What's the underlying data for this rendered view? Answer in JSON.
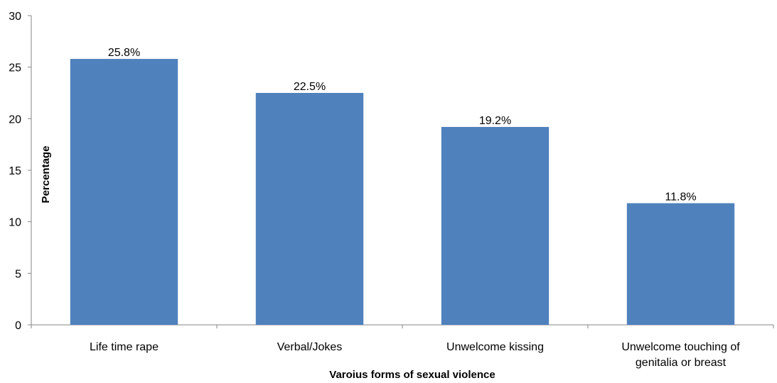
{
  "chart_data": {
    "type": "bar",
    "title": "",
    "xlabel": "Varoius forms of sexual violence",
    "ylabel": "Percentage",
    "ylim": [
      0,
      30
    ],
    "yticks": [
      0,
      5,
      10,
      15,
      20,
      25,
      30
    ],
    "grid": false,
    "legend": "none",
    "bar_color": "#4F81BD",
    "categories": [
      [
        "Life time rape"
      ],
      [
        "Verbal/Jokes"
      ],
      [
        "Unwelcome kissing"
      ],
      [
        "Unwelcome touching of",
        "genitalia or breast"
      ]
    ],
    "values": [
      25.8,
      22.5,
      19.2,
      11.8
    ],
    "data_labels": [
      "25.8%",
      "22.5%",
      "19.2%",
      "11.8%"
    ]
  }
}
